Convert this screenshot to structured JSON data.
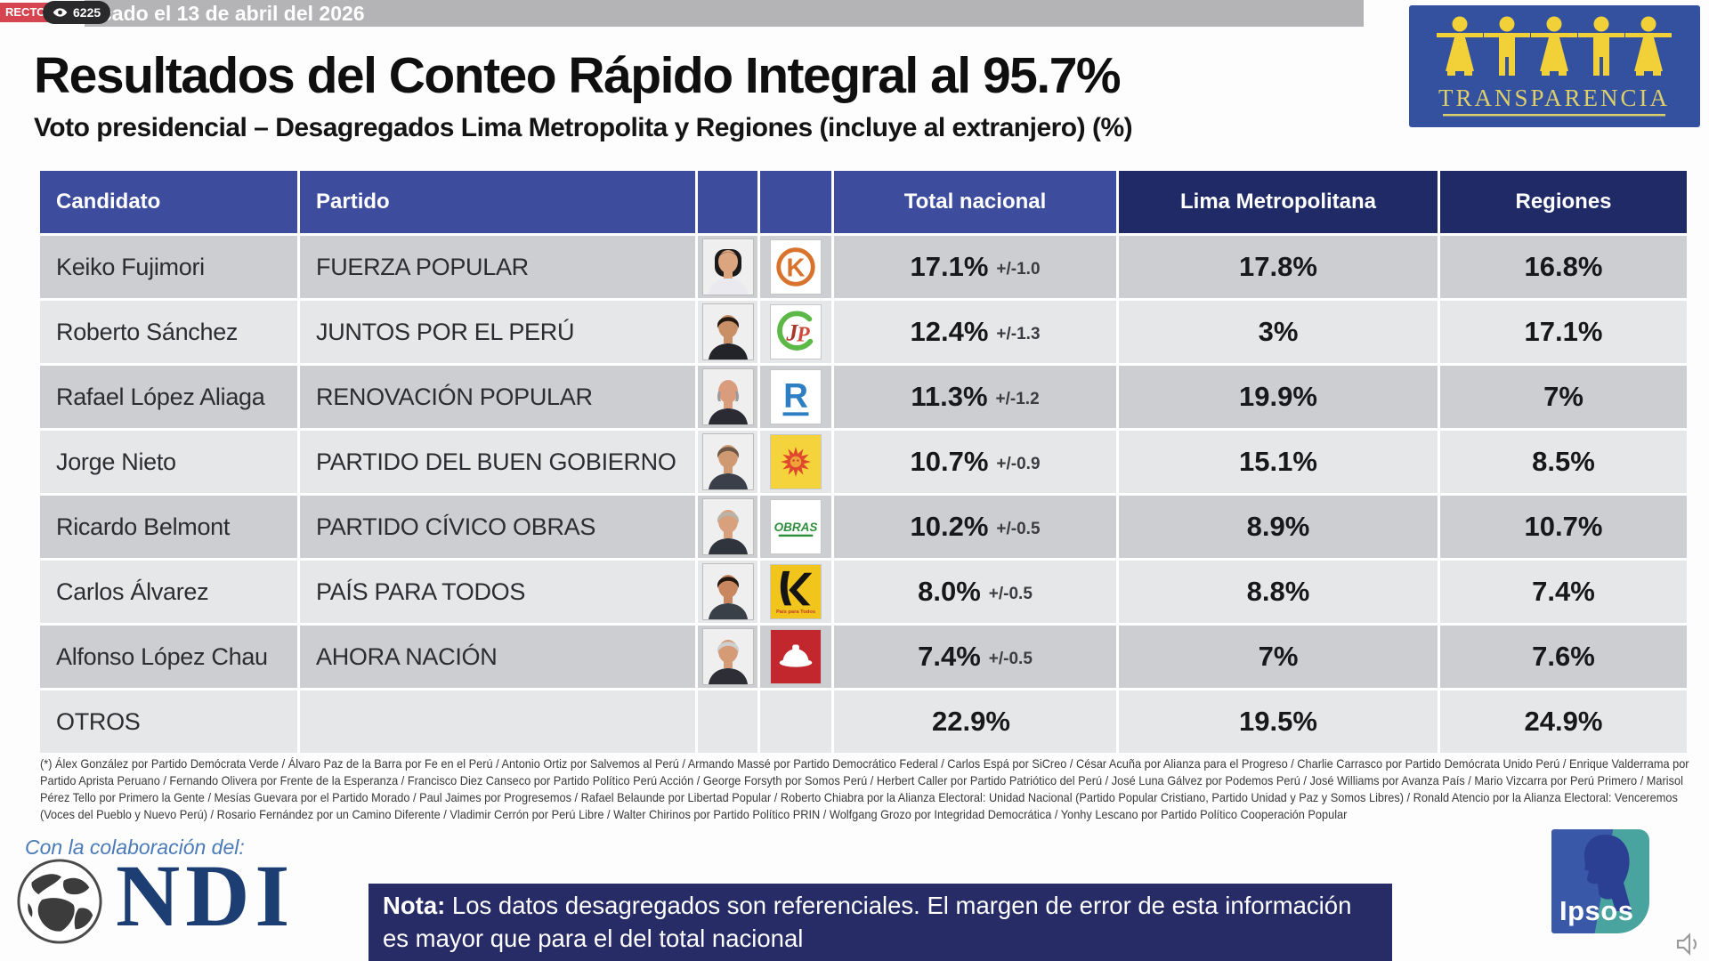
{
  "broadcast": {
    "live_badge": "RECTO",
    "viewer_count": "6225",
    "ticker": "cado el 13 de abril del 2026"
  },
  "header": {
    "title": "Resultados del Conteo Rápido Integral al 95.7%",
    "subtitle": "Voto presidencial – Desagregados Lima Metropolita y Regiones (incluye al extranjero) (%)",
    "transparencia_label": "TRANSPARENCIA"
  },
  "table": {
    "columns": {
      "candidato": "Candidato",
      "partido": "Partido",
      "total": "Total nacional",
      "lima": "Lima Metropolitana",
      "regiones": "Regiones"
    },
    "rows": [
      {
        "candidate": "Keiko Fujimori",
        "party": "FUERZA POPULAR",
        "total": "17.1%",
        "margin": "+/-1.0",
        "lima": "17.8%",
        "regiones": "16.8%",
        "photo": {
          "hair": "#1a1a1a",
          "skin": "#dba57f",
          "shirt": "#e9e9ef",
          "style": "woman"
        },
        "logo": {
          "type": "fp",
          "text": "K",
          "color": "#d8722c",
          "bg": "#ffffff"
        }
      },
      {
        "candidate": "Roberto Sánchez",
        "party": "JUNTOS POR EL PERÚ",
        "total": "12.4%",
        "margin": "+/-1.3",
        "lima": "3%",
        "regiones": "17.1%",
        "photo": {
          "hair": "#241a12",
          "skin": "#c98f66",
          "shirt": "#23242a",
          "style": "man"
        },
        "logo": {
          "type": "jp",
          "text": "JP",
          "color": "#5cb947",
          "bg": "#ffffff"
        }
      },
      {
        "candidate": "Rafael López Aliaga",
        "party": "RENOVACIÓN POPULAR",
        "total": "11.3%",
        "margin": "+/-1.2",
        "lima": "19.9%",
        "regiones": "7%",
        "photo": {
          "hair": "#9a9a9a",
          "skin": "#d99d7e",
          "shirt": "#2b2b33",
          "style": "bald"
        },
        "logo": {
          "type": "rp",
          "text": "R",
          "color": "#2e7fc2",
          "bg": "#ffffff"
        }
      },
      {
        "candidate": "Jorge Nieto",
        "party": "PARTIDO DEL BUEN GOBIERNO",
        "total": "10.7%",
        "margin": "+/-0.9",
        "lima": "15.1%",
        "regiones": "8.5%",
        "photo": {
          "hair": "#6b5744",
          "skin": "#cf9a72",
          "shirt": "#3a3f4a",
          "style": "man"
        },
        "logo": {
          "type": "sun",
          "color": "#e0482e",
          "bg": "#f5d33c"
        }
      },
      {
        "candidate": "Ricardo Belmont",
        "party": "PARTIDO CÍVICO OBRAS",
        "total": "10.2%",
        "margin": "+/-0.5",
        "lima": "8.9%",
        "regiones": "10.7%",
        "photo": {
          "hair": "#b9b3a8",
          "skin": "#d8a07c",
          "shirt": "#30343c",
          "style": "grey"
        },
        "logo": {
          "type": "obras",
          "text": "OBRAS",
          "color": "#2d8f3c",
          "bg": "#ffffff"
        }
      },
      {
        "candidate": "Carlos Álvarez",
        "party": "PAÍS PARA TODOS",
        "total": "8.0%",
        "margin": "+/-0.5",
        "lima": "8.8%",
        "regiones": "7.4%",
        "photo": {
          "hair": "#23180f",
          "skin": "#c8875e",
          "shirt": "#394048",
          "style": "man"
        },
        "logo": {
          "type": "road",
          "text": "País para Todos",
          "color": "#141414",
          "bg": "#f2c51d"
        }
      },
      {
        "candidate": "Alfonso López Chau",
        "party": "AHORA NACIÓN",
        "total": "7.4%",
        "margin": "+/-0.5",
        "lima": "7%",
        "regiones": "7.6%",
        "photo": {
          "hair": "#cfcfcf",
          "skin": "#d49b76",
          "shirt": "#2e2e36",
          "style": "grey"
        },
        "logo": {
          "type": "hat",
          "color": "#ffffff",
          "bg": "#c1272d"
        }
      },
      {
        "candidate": "OTROS",
        "party": "",
        "total": "22.9%",
        "margin": "",
        "lima": "19.5%",
        "regiones": "24.9%",
        "photo": null,
        "logo": null
      }
    ]
  },
  "footnote": "(*) Álex González por Partido Demócrata Verde / Álvaro Paz de la Barra por Fe en el Perú / Antonio Ortiz por Salvemos al Perú / Armando Massé por Partido Democrático Federal / Carlos Espá por SiCreo / César Acuña por Alianza para el Progreso / Charlie Carrasco por Partido Demócrata Unido Perú / Enrique Valderrama por Partido Aprista Peruano / Fernando Olivera por Frente de la Esperanza / Francisco Diez Canseco por Partido Político Perú Acción / George Forsyth por Somos Perú / Herbert Caller por Partido Patriótico del Perú / José Luna Gálvez por Podemos Perú / José Williams por Avanza País / Mario Vizcarra por Perú Primero / Marisol Pérez Tello por Primero la Gente / Mesías Guevara por el Partido Morado / Paul Jaimes por Progresemos / Rafael Belaunde por Libertad Popular / Roberto Chiabra por la Alianza Electoral: Unidad Nacional (Partido Popular Cristiano, Partido Unidad y Paz y Somos Libres) / Ronald Atencio por la Alianza Electoral: Venceremos (Voces del Pueblo y Nuevo Perú) / Rosario Fernández por un Camino Diferente / Vladimir Cerrón por Perú Libre / Walter Chirinos por Partido Político PRIN / Wolfgang Grozo por Integridad Democrática / Yonhy Lescano por Partido Político Cooperación Popular",
  "collaboration": {
    "label": "Con la colaboración del:",
    "ndi_label": "NDI"
  },
  "note": {
    "label": "Nota:",
    "text": " Los datos desagregados son referenciales. El margen de error de esta información es mayor que para el del total nacional"
  },
  "ipsos_label": "Ipsos",
  "colors": {
    "header_blue": "#3d4c9c",
    "header_navy": "#202a66",
    "row_dark": "#cdced2",
    "row_light": "#e6e7e9",
    "note_bg": "#272c66",
    "live_red": "#d6454f",
    "transparencia_blue": "#33519e",
    "transparencia_yellow": "#f2d038"
  },
  "chart_data": {
    "type": "table",
    "title": "Resultados del Conteo Rápido Integral al 95.7%",
    "subtitle": "Voto presidencial – Desagregados Lima Metropolita y Regiones (incluye al extranjero) (%)",
    "columns": [
      "Candidato",
      "Partido",
      "Total nacional",
      "Lima Metropolitana",
      "Regiones"
    ],
    "rows": [
      [
        "Keiko Fujimori",
        "FUERZA POPULAR",
        "17.1% +/-1.0",
        "17.8%",
        "16.8%"
      ],
      [
        "Roberto Sánchez",
        "JUNTOS POR EL PERÚ",
        "12.4% +/-1.3",
        "3%",
        "17.1%"
      ],
      [
        "Rafael López Aliaga",
        "RENOVACIÓN POPULAR",
        "11.3% +/-1.2",
        "19.9%",
        "7%"
      ],
      [
        "Jorge Nieto",
        "PARTIDO DEL BUEN GOBIERNO",
        "10.7% +/-0.9",
        "15.1%",
        "8.5%"
      ],
      [
        "Ricardo Belmont",
        "PARTIDO CÍVICO OBRAS",
        "10.2% +/-0.5",
        "8.9%",
        "10.7%"
      ],
      [
        "Carlos Álvarez",
        "PAÍS PARA TODOS",
        "8.0% +/-0.5",
        "8.8%",
        "7.4%"
      ],
      [
        "Alfonso López Chau",
        "AHORA NACIÓN",
        "7.4% +/-0.5",
        "7%",
        "7.6%"
      ],
      [
        "OTROS",
        "",
        "22.9%",
        "19.5%",
        "24.9%"
      ]
    ]
  }
}
